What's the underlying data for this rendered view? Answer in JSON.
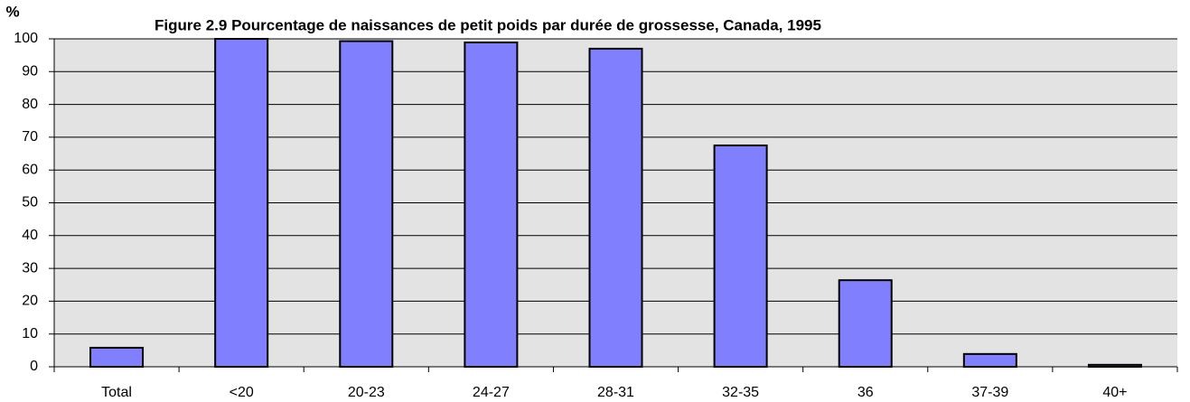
{
  "chart_data": {
    "type": "bar",
    "title": "Figure 2.9  Pourcentage de naissances de petit poids par durée de grossesse, Canada, 1995",
    "y_label": "%",
    "categories": [
      "Total",
      "<20",
      "20-23",
      "24-27",
      "28-31",
      "32-35",
      "36",
      "37-39",
      "40+"
    ],
    "values": [
      5.8,
      100,
      99.3,
      98.9,
      97,
      67.5,
      26.4,
      3.9,
      0.6
    ],
    "color": "#8080ff",
    "ylim": [
      0,
      100
    ],
    "yticks": [
      0,
      10,
      20,
      30,
      40,
      50,
      60,
      70,
      80,
      90,
      100
    ],
    "grid": true
  }
}
